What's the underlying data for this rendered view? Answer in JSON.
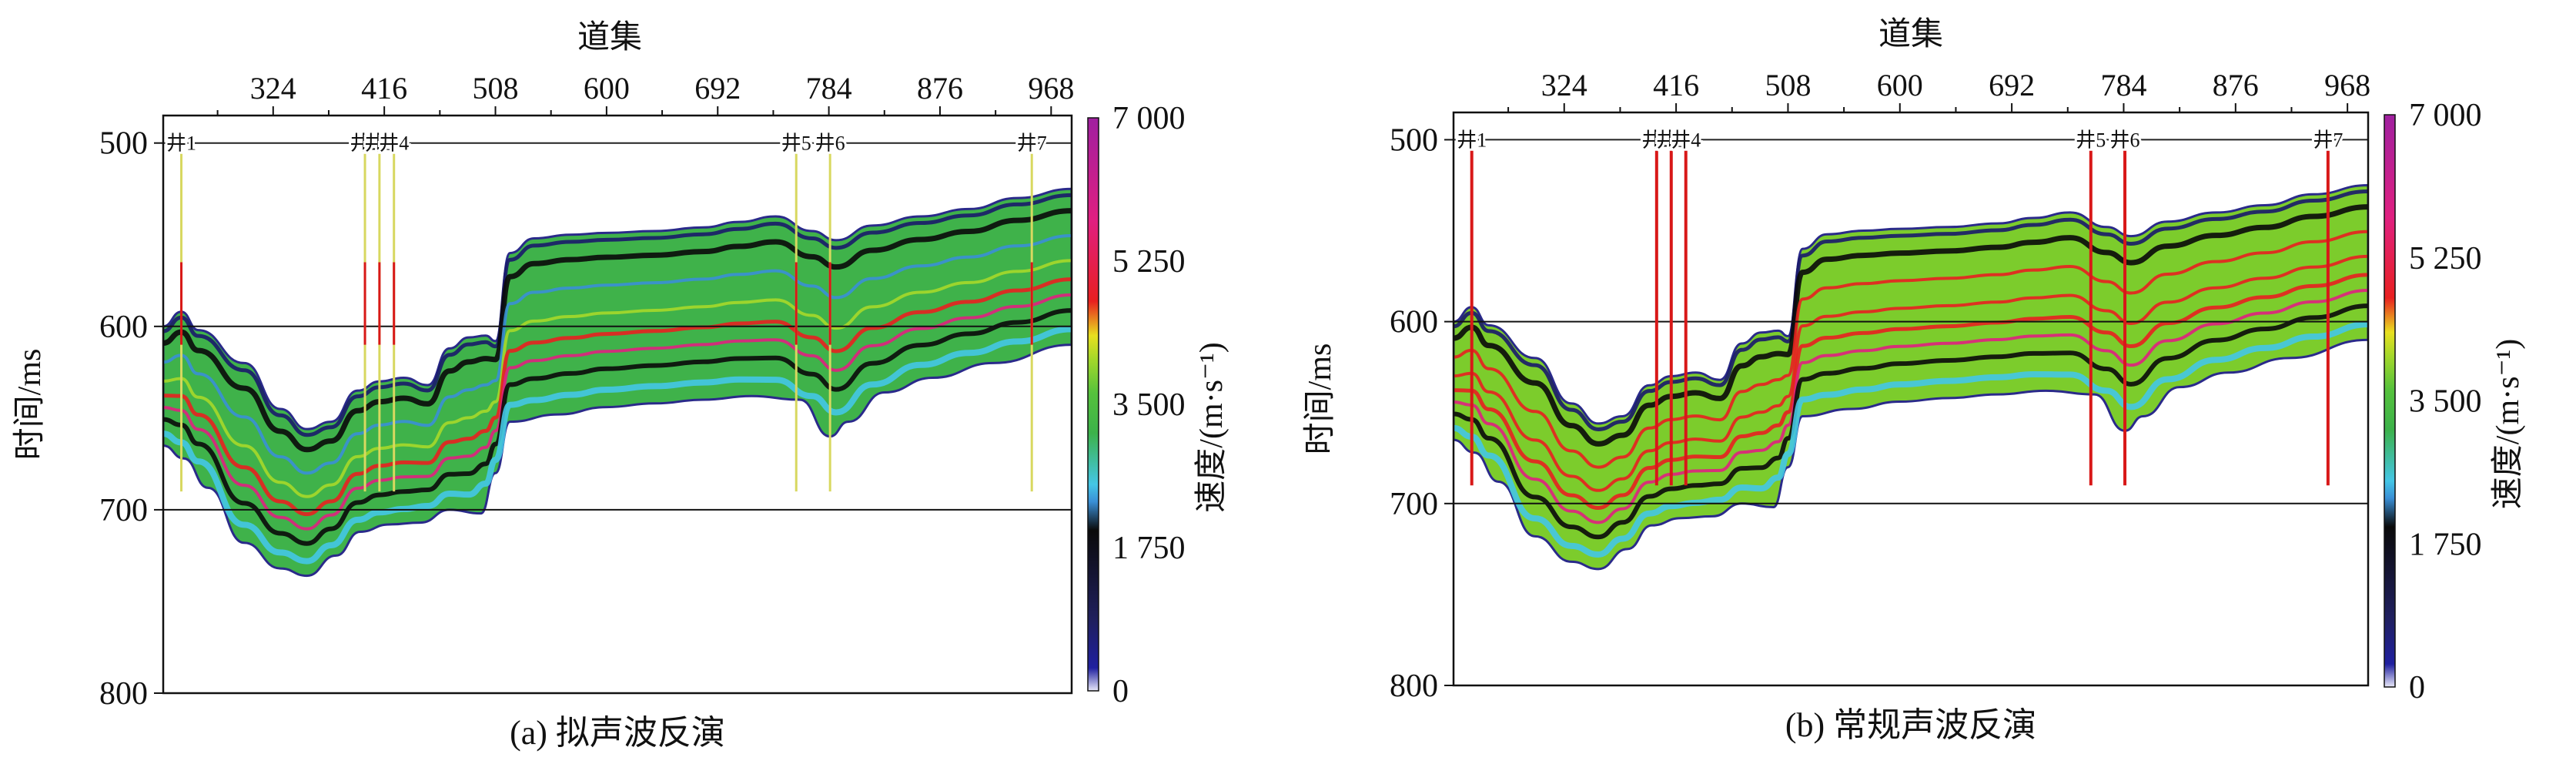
{
  "panels": [
    {
      "id": "a",
      "caption": "(a) 拟声波反演",
      "xlabel": "道集",
      "ylabel": "时间/ms",
      "colorbar_label": "速度/(m·s⁻¹)",
      "fill_color": "#3fb24a",
      "wells_style": "yellow"
    },
    {
      "id": "b",
      "caption": "(b) 常规声波反演",
      "xlabel": "道集",
      "ylabel": "时间/ms",
      "colorbar_label": "速度/(m·s⁻¹)",
      "fill_color": "#7ccc2c",
      "wells_style": "red"
    }
  ],
  "chart_data": [
    {
      "type": "heatmap",
      "title": "",
      "caption": "(a) 拟声波反演",
      "xlabel": "道集",
      "ylabel": "时间/ms",
      "x_ticks": [
        324,
        416,
        508,
        600,
        692,
        784,
        876,
        968
      ],
      "xlim": [
        233,
        985
      ],
      "y_ticks": [
        500,
        600,
        700,
        800
      ],
      "ylim": [
        800,
        485
      ],
      "gridlines_y": [
        600,
        700
      ],
      "colorbar": {
        "label": "速度/(m·s⁻¹)",
        "ticks": [
          "7 000",
          "5 250",
          "3 500",
          "1 750",
          "0"
        ],
        "range": [
          0,
          7000
        ],
        "colors": [
          "#e8e8f8",
          "#2020a0",
          "#202060",
          "#0a0a0a",
          "#3a8fd6",
          "#44c6e6",
          "#3cb24a",
          "#56c23c",
          "#a6d82a",
          "#e8e020",
          "#e82020",
          "#e02080",
          "#a020a0"
        ]
      },
      "wells": [
        {
          "label": "井1",
          "trace": 248
        },
        {
          "label": "井2",
          "trace": 400
        },
        {
          "label": "井3",
          "trace": 412
        },
        {
          "label": "井4",
          "trace": 424
        },
        {
          "label": "井5",
          "trace": 757
        },
        {
          "label": "井6",
          "trace": 785
        },
        {
          "label": "井7",
          "trace": 952
        }
      ]
    },
    {
      "type": "heatmap",
      "title": "",
      "caption": "(b) 常规声波反演",
      "xlabel": "道集",
      "ylabel": "时间/ms",
      "x_ticks": [
        324,
        416,
        508,
        600,
        692,
        784,
        876,
        968
      ],
      "xlim": [
        233,
        985
      ],
      "y_ticks": [
        500,
        600,
        700,
        800
      ],
      "ylim": [
        800,
        485
      ],
      "gridlines_y": [
        600,
        700
      ],
      "colorbar": {
        "label": "速度/(m·s⁻¹)",
        "ticks": [
          "7 000",
          "5 250",
          "3 500",
          "1 750",
          "0"
        ],
        "range": [
          0,
          7000
        ],
        "colors": [
          "#e8e8f8",
          "#2020a0",
          "#202060",
          "#0a0a0a",
          "#3a8fd6",
          "#44c6e6",
          "#3cb24a",
          "#56c23c",
          "#a6d82a",
          "#e8e020",
          "#e82020",
          "#e02080",
          "#a020a0"
        ]
      },
      "wells": [
        {
          "label": "井1",
          "trace": 248
        },
        {
          "label": "井2",
          "trace": 400
        },
        {
          "label": "井3",
          "trace": 412
        },
        {
          "label": "井4",
          "trace": 424
        },
        {
          "label": "井5",
          "trace": 757
        },
        {
          "label": "井6",
          "trace": 785
        },
        {
          "label": "井7",
          "trace": 952
        }
      ]
    }
  ]
}
